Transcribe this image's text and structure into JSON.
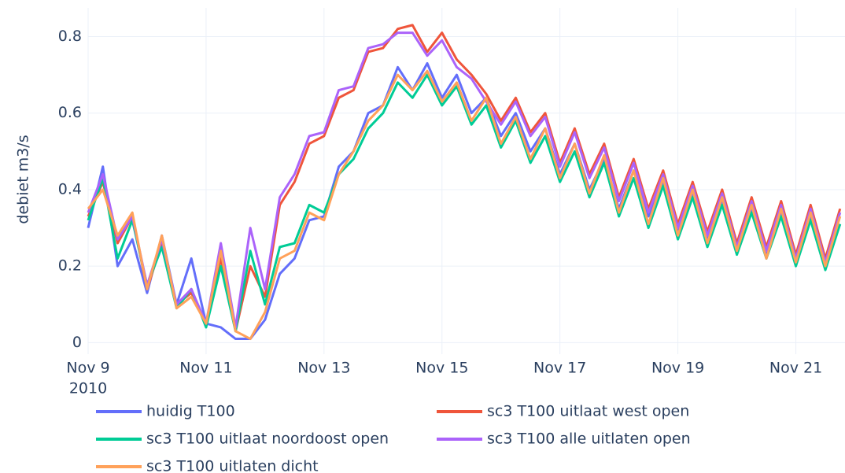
{
  "chart_data": {
    "type": "line",
    "y_label": "debiet m3/s",
    "x_year_label": "2010",
    "x": [
      "2010-11-09T00:00Z",
      "2010-11-09T06:00Z",
      "2010-11-09T12:00Z",
      "2010-11-09T18:00Z",
      "2010-11-10T00:00Z",
      "2010-11-10T06:00Z",
      "2010-11-10T12:00Z",
      "2010-11-10T18:00Z",
      "2010-11-11T00:00Z",
      "2010-11-11T06:00Z",
      "2010-11-11T12:00Z",
      "2010-11-11T18:00Z",
      "2010-11-12T00:00Z",
      "2010-11-12T06:00Z",
      "2010-11-12T12:00Z",
      "2010-11-12T18:00Z",
      "2010-11-13T00:00Z",
      "2010-11-13T06:00Z",
      "2010-11-13T12:00Z",
      "2010-11-13T18:00Z",
      "2010-11-14T00:00Z",
      "2010-11-14T06:00Z",
      "2010-11-14T12:00Z",
      "2010-11-14T18:00Z",
      "2010-11-15T00:00Z",
      "2010-11-15T06:00Z",
      "2010-11-15T12:00Z",
      "2010-11-15T18:00Z",
      "2010-11-16T00:00Z",
      "2010-11-16T06:00Z",
      "2010-11-16T12:00Z",
      "2010-11-16T18:00Z",
      "2010-11-17T00:00Z",
      "2010-11-17T06:00Z",
      "2010-11-17T12:00Z",
      "2010-11-17T18:00Z",
      "2010-11-18T00:00Z",
      "2010-11-18T06:00Z",
      "2010-11-18T12:00Z",
      "2010-11-18T18:00Z",
      "2010-11-19T00:00Z",
      "2010-11-19T06:00Z",
      "2010-11-19T12:00Z",
      "2010-11-19T18:00Z",
      "2010-11-20T00:00Z",
      "2010-11-20T06:00Z",
      "2010-11-20T12:00Z",
      "2010-11-20T18:00Z",
      "2010-11-21T00:00Z",
      "2010-11-21T06:00Z",
      "2010-11-21T12:00Z",
      "2010-11-21T18:00Z"
    ],
    "series": [
      {
        "name": "huidig T100",
        "color": "#636efa",
        "values": [
          0.3,
          0.46,
          0.2,
          0.27,
          0.13,
          0.28,
          0.1,
          0.22,
          0.05,
          0.04,
          0.01,
          0.01,
          0.06,
          0.18,
          0.22,
          0.32,
          0.33,
          0.46,
          0.5,
          0.6,
          0.62,
          0.72,
          0.66,
          0.73,
          0.64,
          0.7,
          0.6,
          0.64,
          0.54,
          0.6,
          0.5,
          0.56,
          0.44,
          0.52,
          0.4,
          0.48,
          0.35,
          0.45,
          0.33,
          0.42,
          0.29,
          0.39,
          0.27,
          0.37,
          0.25,
          0.35,
          0.23,
          0.34,
          0.21,
          0.33,
          0.2,
          0.31
        ]
      },
      {
        "name": "sc3 T100 uitlaat west open",
        "color": "#EF553B",
        "values": [
          0.33,
          0.42,
          0.26,
          0.33,
          0.14,
          0.26,
          0.1,
          0.13,
          0.05,
          0.22,
          0.03,
          0.2,
          0.12,
          0.36,
          0.42,
          0.52,
          0.54,
          0.64,
          0.66,
          0.76,
          0.77,
          0.82,
          0.83,
          0.76,
          0.81,
          0.74,
          0.7,
          0.65,
          0.58,
          0.64,
          0.55,
          0.6,
          0.47,
          0.56,
          0.44,
          0.52,
          0.38,
          0.48,
          0.35,
          0.45,
          0.31,
          0.42,
          0.29,
          0.4,
          0.26,
          0.38,
          0.25,
          0.37,
          0.23,
          0.36,
          0.22,
          0.35
        ]
      },
      {
        "name": "sc3 T100 uitlaat noordoost open",
        "color": "#00cc96",
        "values": [
          0.32,
          0.43,
          0.22,
          0.32,
          0.15,
          0.25,
          0.09,
          0.14,
          0.04,
          0.2,
          0.03,
          0.24,
          0.1,
          0.25,
          0.26,
          0.36,
          0.34,
          0.44,
          0.48,
          0.56,
          0.6,
          0.68,
          0.64,
          0.7,
          0.62,
          0.67,
          0.57,
          0.62,
          0.51,
          0.58,
          0.47,
          0.54,
          0.42,
          0.5,
          0.38,
          0.47,
          0.33,
          0.43,
          0.3,
          0.41,
          0.27,
          0.38,
          0.25,
          0.36,
          0.23,
          0.34,
          0.22,
          0.33,
          0.2,
          0.32,
          0.19,
          0.31
        ]
      },
      {
        "name": "sc3 T100 alle uitlaten open",
        "color": "#ab63fa",
        "values": [
          0.34,
          0.44,
          0.27,
          0.33,
          0.15,
          0.27,
          0.1,
          0.14,
          0.05,
          0.26,
          0.04,
          0.3,
          0.14,
          0.38,
          0.44,
          0.54,
          0.55,
          0.66,
          0.67,
          0.77,
          0.78,
          0.81,
          0.81,
          0.75,
          0.79,
          0.72,
          0.69,
          0.63,
          0.57,
          0.63,
          0.54,
          0.59,
          0.46,
          0.55,
          0.43,
          0.51,
          0.37,
          0.47,
          0.34,
          0.44,
          0.3,
          0.41,
          0.28,
          0.39,
          0.25,
          0.37,
          0.24,
          0.36,
          0.22,
          0.35,
          0.21,
          0.34
        ]
      },
      {
        "name": "sc3 T100 uitlaten dicht",
        "color": "#FFA15A",
        "values": [
          0.35,
          0.4,
          0.28,
          0.34,
          0.14,
          0.28,
          0.09,
          0.12,
          0.05,
          0.24,
          0.03,
          0.01,
          0.08,
          0.22,
          0.24,
          0.34,
          0.32,
          0.44,
          0.5,
          0.58,
          0.62,
          0.7,
          0.66,
          0.71,
          0.63,
          0.68,
          0.58,
          0.64,
          0.52,
          0.59,
          0.48,
          0.56,
          0.43,
          0.52,
          0.39,
          0.49,
          0.34,
          0.45,
          0.31,
          0.43,
          0.28,
          0.4,
          0.26,
          0.38,
          0.24,
          0.36,
          0.22,
          0.35,
          0.21,
          0.34,
          0.2,
          0.33
        ]
      }
    ],
    "xlim": [
      "2010-11-09T00:00Z",
      "2010-11-21T20:00Z"
    ],
    "xticks": [
      {
        "value": "2010-11-09T00:00Z",
        "label": "Nov 9"
      },
      {
        "value": "2010-11-11T00:00Z",
        "label": "Nov 11"
      },
      {
        "value": "2010-11-13T00:00Z",
        "label": "Nov 13"
      },
      {
        "value": "2010-11-15T00:00Z",
        "label": "Nov 15"
      },
      {
        "value": "2010-11-17T00:00Z",
        "label": "Nov 17"
      },
      {
        "value": "2010-11-19T00:00Z",
        "label": "Nov 19"
      },
      {
        "value": "2010-11-21T00:00Z",
        "label": "Nov 21"
      }
    ],
    "ylim": [
      -0.03,
      0.875
    ],
    "yticks": [
      0,
      0.2,
      0.4,
      0.6,
      0.8
    ],
    "grid": true
  }
}
